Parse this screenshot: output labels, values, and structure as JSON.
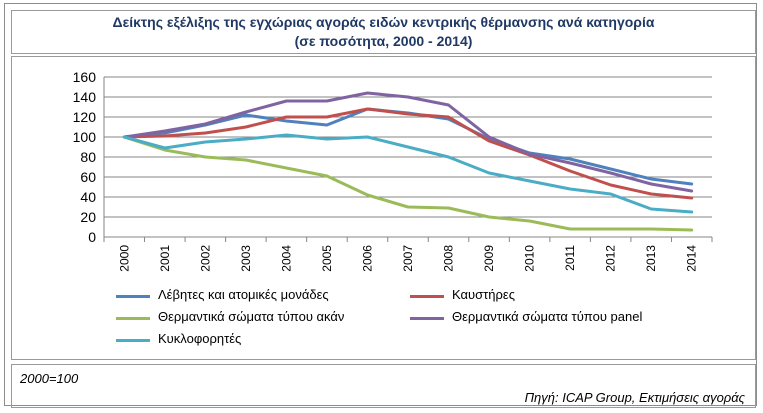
{
  "title_line1": "Δείκτης εξέλιξης της εγχώριας αγοράς ειδών κεντρικής θέρμανσης ανά κατηγορία",
  "title_line2": "(σε ποσότητα, 2000 - 2014)",
  "footnote_base": "2000=100",
  "footnote_source": "Πηγή: ICAP Group, Εκτιμήσεις αγοράς",
  "chart_data": {
    "type": "line",
    "x": [
      "2000",
      "2001",
      "2002",
      "2003",
      "2004",
      "2005",
      "2006",
      "2007",
      "2008",
      "2009",
      "2010",
      "2011",
      "2012",
      "2013",
      "2014"
    ],
    "ylim": [
      0,
      160
    ],
    "yticks": [
      0,
      20,
      40,
      60,
      80,
      100,
      120,
      140,
      160
    ],
    "grid": true,
    "legend_position": "bottom",
    "series": [
      {
        "name": "Λέβητες και ατομικές μονάδες",
        "color": "#4f81bd",
        "values": [
          100,
          104,
          112,
          122,
          116,
          112,
          128,
          124,
          118,
          98,
          84,
          78,
          68,
          58,
          53
        ]
      },
      {
        "name": "Καυστήρες",
        "color": "#c0504d",
        "values": [
          100,
          101,
          104,
          110,
          120,
          120,
          128,
          123,
          120,
          96,
          82,
          66,
          52,
          43,
          39
        ]
      },
      {
        "name": "Θερμαντικά σώματα τύπου ακάν",
        "color": "#9bbb59",
        "values": [
          100,
          87,
          80,
          77,
          69,
          61,
          42,
          30,
          29,
          20,
          16,
          8,
          8,
          8,
          7
        ]
      },
      {
        "name": "Θερμαντικά σώματα τύπου panel",
        "color": "#8064a2",
        "values": [
          100,
          106,
          113,
          125,
          136,
          136,
          144,
          140,
          132,
          100,
          83,
          74,
          64,
          53,
          46
        ]
      },
      {
        "name": "Κυκλοφορητές",
        "color": "#4bacc6",
        "values": [
          100,
          89,
          95,
          98,
          102,
          98,
          100,
          90,
          80,
          64,
          56,
          48,
          43,
          28,
          25
        ]
      }
    ]
  }
}
